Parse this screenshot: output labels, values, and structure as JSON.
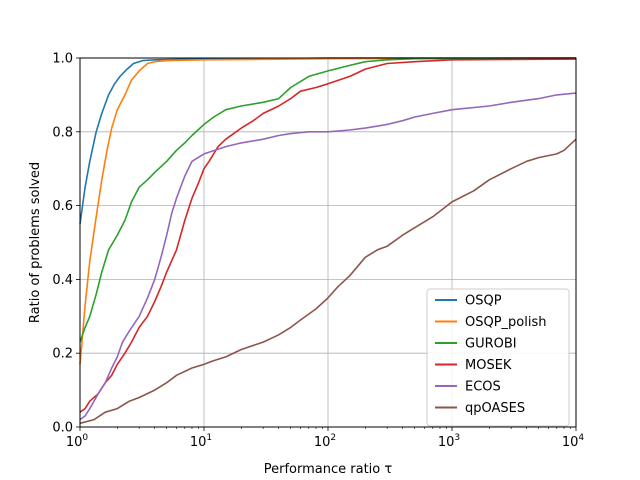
{
  "chart_data": {
    "type": "line",
    "title": "",
    "xlabel": "Performance ratio τ",
    "ylabel": "Ratio of problems solved",
    "xscale": "log",
    "xlim": [
      1,
      10000
    ],
    "ylim": [
      0,
      1
    ],
    "grid": true,
    "legend_position": "lower-right",
    "x_ticks": [
      {
        "value": 1,
        "base": "10",
        "exp": "0"
      },
      {
        "value": 10,
        "base": "10",
        "exp": "1"
      },
      {
        "value": 100,
        "base": "10",
        "exp": "2"
      },
      {
        "value": 1000,
        "base": "10",
        "exp": "3"
      },
      {
        "value": 10000,
        "base": "10",
        "exp": "4"
      }
    ],
    "y_ticks": [
      "0.0",
      "0.2",
      "0.4",
      "0.6",
      "0.8",
      "1.0"
    ],
    "series": [
      {
        "name": "OSQP",
        "color": "#1f77b4",
        "points": [
          [
            1,
            0.55
          ],
          [
            1.1,
            0.65
          ],
          [
            1.2,
            0.72
          ],
          [
            1.35,
            0.8
          ],
          [
            1.5,
            0.85
          ],
          [
            1.7,
            0.9
          ],
          [
            1.9,
            0.93
          ],
          [
            2.1,
            0.95
          ],
          [
            2.4,
            0.97
          ],
          [
            2.7,
            0.985
          ],
          [
            3.2,
            0.993
          ],
          [
            4,
            0.995
          ],
          [
            5,
            0.996
          ],
          [
            8,
            0.997
          ],
          [
            15,
            0.997
          ],
          [
            30,
            0.998
          ],
          [
            55,
            0.999
          ],
          [
            100,
            1.0
          ],
          [
            10000,
            1.0
          ]
        ]
      },
      {
        "name": "OSQP_polish",
        "color": "#ff7f0e",
        "points": [
          [
            1,
            0.17
          ],
          [
            1.05,
            0.25
          ],
          [
            1.1,
            0.33
          ],
          [
            1.2,
            0.45
          ],
          [
            1.35,
            0.57
          ],
          [
            1.5,
            0.67
          ],
          [
            1.65,
            0.75
          ],
          [
            1.8,
            0.81
          ],
          [
            2,
            0.86
          ],
          [
            2.3,
            0.9
          ],
          [
            2.6,
            0.94
          ],
          [
            3,
            0.965
          ],
          [
            3.5,
            0.985
          ],
          [
            4,
            0.99
          ],
          [
            5,
            0.993
          ],
          [
            10,
            0.995
          ],
          [
            50,
            0.997
          ],
          [
            100,
            0.998
          ],
          [
            1000,
            0.999
          ],
          [
            10000,
            1.0
          ]
        ]
      },
      {
        "name": "GUROBI",
        "color": "#2ca02c",
        "points": [
          [
            1,
            0.23
          ],
          [
            1.1,
            0.27
          ],
          [
            1.2,
            0.3
          ],
          [
            1.35,
            0.36
          ],
          [
            1.5,
            0.42
          ],
          [
            1.7,
            0.48
          ],
          [
            2,
            0.52
          ],
          [
            2.3,
            0.56
          ],
          [
            2.6,
            0.61
          ],
          [
            3,
            0.65
          ],
          [
            3.5,
            0.67
          ],
          [
            4,
            0.69
          ],
          [
            5,
            0.72
          ],
          [
            6,
            0.75
          ],
          [
            7,
            0.77
          ],
          [
            8,
            0.79
          ],
          [
            10,
            0.82
          ],
          [
            12,
            0.84
          ],
          [
            15,
            0.86
          ],
          [
            20,
            0.87
          ],
          [
            30,
            0.88
          ],
          [
            40,
            0.89
          ],
          [
            50,
            0.92
          ],
          [
            70,
            0.95
          ],
          [
            100,
            0.965
          ],
          [
            150,
            0.98
          ],
          [
            200,
            0.99
          ],
          [
            300,
            0.995
          ],
          [
            500,
            0.998
          ],
          [
            1000,
            0.999
          ],
          [
            10000,
            1.0
          ]
        ]
      },
      {
        "name": "MOSEK",
        "color": "#d62728",
        "points": [
          [
            1,
            0.04
          ],
          [
            1.1,
            0.05
          ],
          [
            1.2,
            0.07
          ],
          [
            1.4,
            0.09
          ],
          [
            1.6,
            0.12
          ],
          [
            1.8,
            0.14
          ],
          [
            2,
            0.17
          ],
          [
            2.3,
            0.2
          ],
          [
            2.6,
            0.23
          ],
          [
            3,
            0.27
          ],
          [
            3.5,
            0.3
          ],
          [
            4,
            0.34
          ],
          [
            4.5,
            0.38
          ],
          [
            5,
            0.42
          ],
          [
            6,
            0.48
          ],
          [
            7,
            0.56
          ],
          [
            8,
            0.62
          ],
          [
            9,
            0.66
          ],
          [
            10,
            0.7
          ],
          [
            11,
            0.72
          ],
          [
            13,
            0.76
          ],
          [
            15,
            0.78
          ],
          [
            20,
            0.81
          ],
          [
            25,
            0.83
          ],
          [
            30,
            0.85
          ],
          [
            40,
            0.87
          ],
          [
            50,
            0.89
          ],
          [
            60,
            0.91
          ],
          [
            80,
            0.92
          ],
          [
            100,
            0.93
          ],
          [
            150,
            0.95
          ],
          [
            200,
            0.97
          ],
          [
            300,
            0.985
          ],
          [
            500,
            0.99
          ],
          [
            1000,
            0.995
          ],
          [
            3000,
            0.996
          ],
          [
            10000,
            0.997
          ]
        ]
      },
      {
        "name": "ECOS",
        "color": "#9467bd",
        "points": [
          [
            1,
            0.02
          ],
          [
            1.1,
            0.03
          ],
          [
            1.2,
            0.05
          ],
          [
            1.4,
            0.09
          ],
          [
            1.6,
            0.12
          ],
          [
            1.8,
            0.16
          ],
          [
            2,
            0.19
          ],
          [
            2.2,
            0.23
          ],
          [
            2.5,
            0.26
          ],
          [
            3,
            0.3
          ],
          [
            3.5,
            0.35
          ],
          [
            4,
            0.4
          ],
          [
            4.5,
            0.46
          ],
          [
            5,
            0.52
          ],
          [
            5.5,
            0.58
          ],
          [
            6,
            0.62
          ],
          [
            7,
            0.68
          ],
          [
            8,
            0.72
          ],
          [
            10,
            0.74
          ],
          [
            15,
            0.76
          ],
          [
            20,
            0.77
          ],
          [
            30,
            0.78
          ],
          [
            40,
            0.79
          ],
          [
            50,
            0.795
          ],
          [
            70,
            0.8
          ],
          [
            100,
            0.8
          ],
          [
            150,
            0.805
          ],
          [
            200,
            0.81
          ],
          [
            300,
            0.82
          ],
          [
            400,
            0.83
          ],
          [
            500,
            0.84
          ],
          [
            700,
            0.85
          ],
          [
            1000,
            0.86
          ],
          [
            2000,
            0.87
          ],
          [
            3000,
            0.88
          ],
          [
            5000,
            0.89
          ],
          [
            7000,
            0.9
          ],
          [
            10000,
            0.905
          ]
        ]
      },
      {
        "name": "qpOASES",
        "color": "#8c564b",
        "points": [
          [
            1,
            0.01
          ],
          [
            1.3,
            0.02
          ],
          [
            1.6,
            0.04
          ],
          [
            2,
            0.05
          ],
          [
            2.5,
            0.07
          ],
          [
            3,
            0.08
          ],
          [
            4,
            0.1
          ],
          [
            5,
            0.12
          ],
          [
            6,
            0.14
          ],
          [
            8,
            0.16
          ],
          [
            10,
            0.17
          ],
          [
            12,
            0.18
          ],
          [
            15,
            0.19
          ],
          [
            20,
            0.21
          ],
          [
            30,
            0.23
          ],
          [
            40,
            0.25
          ],
          [
            50,
            0.27
          ],
          [
            60,
            0.29
          ],
          [
            80,
            0.32
          ],
          [
            100,
            0.35
          ],
          [
            120,
            0.38
          ],
          [
            150,
            0.41
          ],
          [
            200,
            0.46
          ],
          [
            250,
            0.48
          ],
          [
            300,
            0.49
          ],
          [
            400,
            0.52
          ],
          [
            500,
            0.54
          ],
          [
            700,
            0.57
          ],
          [
            1000,
            0.61
          ],
          [
            1500,
            0.64
          ],
          [
            2000,
            0.67
          ],
          [
            3000,
            0.7
          ],
          [
            4000,
            0.72
          ],
          [
            5000,
            0.73
          ],
          [
            7000,
            0.74
          ],
          [
            8000,
            0.75
          ],
          [
            10000,
            0.78
          ]
        ]
      }
    ]
  }
}
